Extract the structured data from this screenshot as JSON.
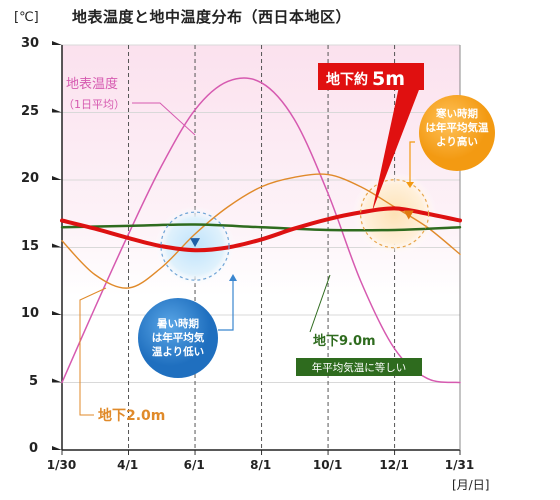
{
  "chart_data": {
    "type": "line",
    "title": "地表温度と地中温度分布（西日本地区）",
    "y_unit": "[℃]",
    "x_unit": "[月/日]",
    "ylim": [
      0,
      30
    ],
    "yticks": [
      0,
      5,
      10,
      15,
      20,
      25,
      30
    ],
    "xlim": [
      0,
      365
    ],
    "xticks": [
      {
        "label": "1/30",
        "value": 0
      },
      {
        "label": "4/1",
        "value": 61
      },
      {
        "label": "6/1",
        "value": 122
      },
      {
        "label": "8/1",
        "value": 183
      },
      {
        "label": "10/1",
        "value": 244
      },
      {
        "label": "12/1",
        "value": 305
      },
      {
        "label": "1/31",
        "value": 365
      }
    ],
    "grid": true,
    "series": [
      {
        "name": "地表温度（1日平均）",
        "color": "#d65ab0",
        "x": [
          0,
          30,
          61,
          91,
          122,
          152,
          183,
          213,
          244,
          274,
          305,
          335,
          365
        ],
        "values": [
          5,
          10.5,
          16,
          21,
          25.2,
          27.3,
          27.2,
          24.5,
          19,
          12.5,
          7.5,
          5.3,
          5
        ]
      },
      {
        "name": "地下2.0m",
        "color": "#e08a2a",
        "x": [
          0,
          30,
          61,
          91,
          122,
          152,
          183,
          213,
          244,
          274,
          305,
          335,
          365
        ],
        "values": [
          15.5,
          13,
          12,
          13.5,
          16,
          18,
          19.5,
          20.2,
          20.4,
          19.5,
          18,
          16.5,
          14.5
        ]
      },
      {
        "name": "地下約5m",
        "color": "#dd1111",
        "x": [
          0,
          30,
          61,
          91,
          122,
          152,
          183,
          213,
          244,
          274,
          305,
          335,
          365
        ],
        "values": [
          17,
          16.4,
          15.7,
          15.1,
          14.8,
          15,
          15.6,
          16.4,
          17.1,
          17.6,
          17.9,
          17.5,
          17
        ]
      },
      {
        "name": "地下9.0m",
        "color": "#2e6b1e",
        "x": [
          0,
          61,
          122,
          183,
          244,
          305,
          365
        ],
        "values": [
          16.5,
          16.6,
          16.7,
          16.5,
          16.3,
          16.3,
          16.5
        ]
      }
    ],
    "annotations": {
      "surface_label": "地表温度",
      "surface_sub": "（1日平均）",
      "five_m_label": "地下約",
      "five_m_value": "5m",
      "two_m_label": "地下2.0m",
      "nine_m_label": "地下9.0m",
      "nine_m_sub": "年平均気温に等しい",
      "summer_note": [
        "暑い時期",
        "は年平均気",
        "温より低い"
      ],
      "winter_note": [
        "寒い時期",
        "は年平均気温",
        "より高い"
      ]
    }
  }
}
